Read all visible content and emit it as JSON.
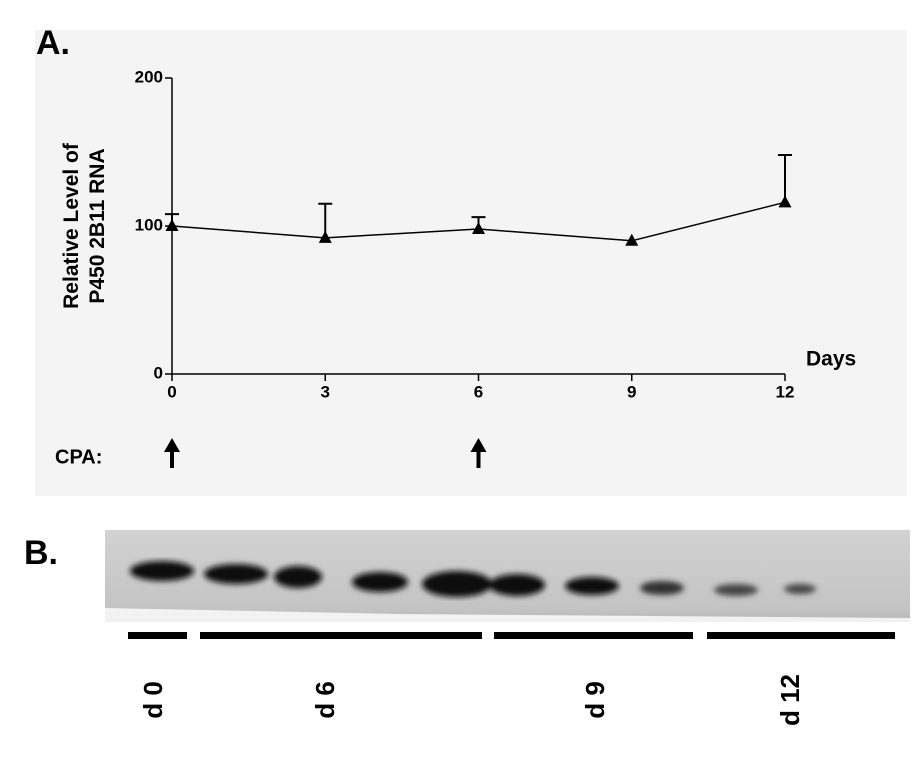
{
  "chart_data": {
    "type": "line",
    "panel_label": "A.",
    "y_label": [
      "Relative Level of",
      "P450 2B11 RNA"
    ],
    "x_label": "Days",
    "x": [
      0,
      3,
      6,
      9,
      12
    ],
    "values": [
      100,
      92,
      98,
      90,
      116
    ],
    "errors": [
      8,
      23,
      8,
      null,
      32
    ],
    "color": "#000000",
    "xlim": [
      0,
      12
    ],
    "xticks": [
      0,
      3,
      6,
      9,
      12
    ],
    "ylim": [
      0,
      200
    ],
    "yticks": [
      0,
      100,
      200
    ],
    "annotation": {
      "label": "CPA:",
      "x": [
        0,
        6
      ]
    }
  },
  "blot": {
    "panel_label": "B.",
    "groups": [
      "d 0",
      "d 6",
      "d 9",
      "d 12"
    ]
  }
}
